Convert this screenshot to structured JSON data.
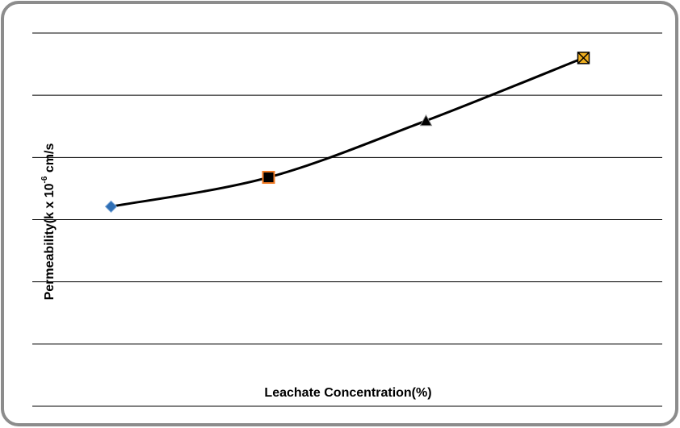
{
  "chart_data": {
    "type": "line",
    "x_label": "Leachate Concentration(%)",
    "y_label": {
      "text": "Permeability(k x 10",
      "superscript": "-6",
      "suffix": " cm/s"
    },
    "categories": [
      null,
      null,
      null,
      null
    ],
    "values": [
      3.21,
      3.68,
      4.59,
      5.6
    ],
    "color": "#000000",
    "markers": [
      "diamond",
      "square",
      "triangle",
      "x-square"
    ],
    "marker_colors": [
      "#2f6fb5",
      "#000000",
      "#000000",
      "#f0b020"
    ],
    "marker_edges": [
      "#7aa7d8",
      "#f07820",
      "#888888",
      "#000000"
    ],
    "smooth": true,
    "ylim": [
      0,
      6
    ],
    "yticks": [
      0,
      1,
      2,
      3,
      4,
      5,
      6
    ],
    "grid": true
  }
}
